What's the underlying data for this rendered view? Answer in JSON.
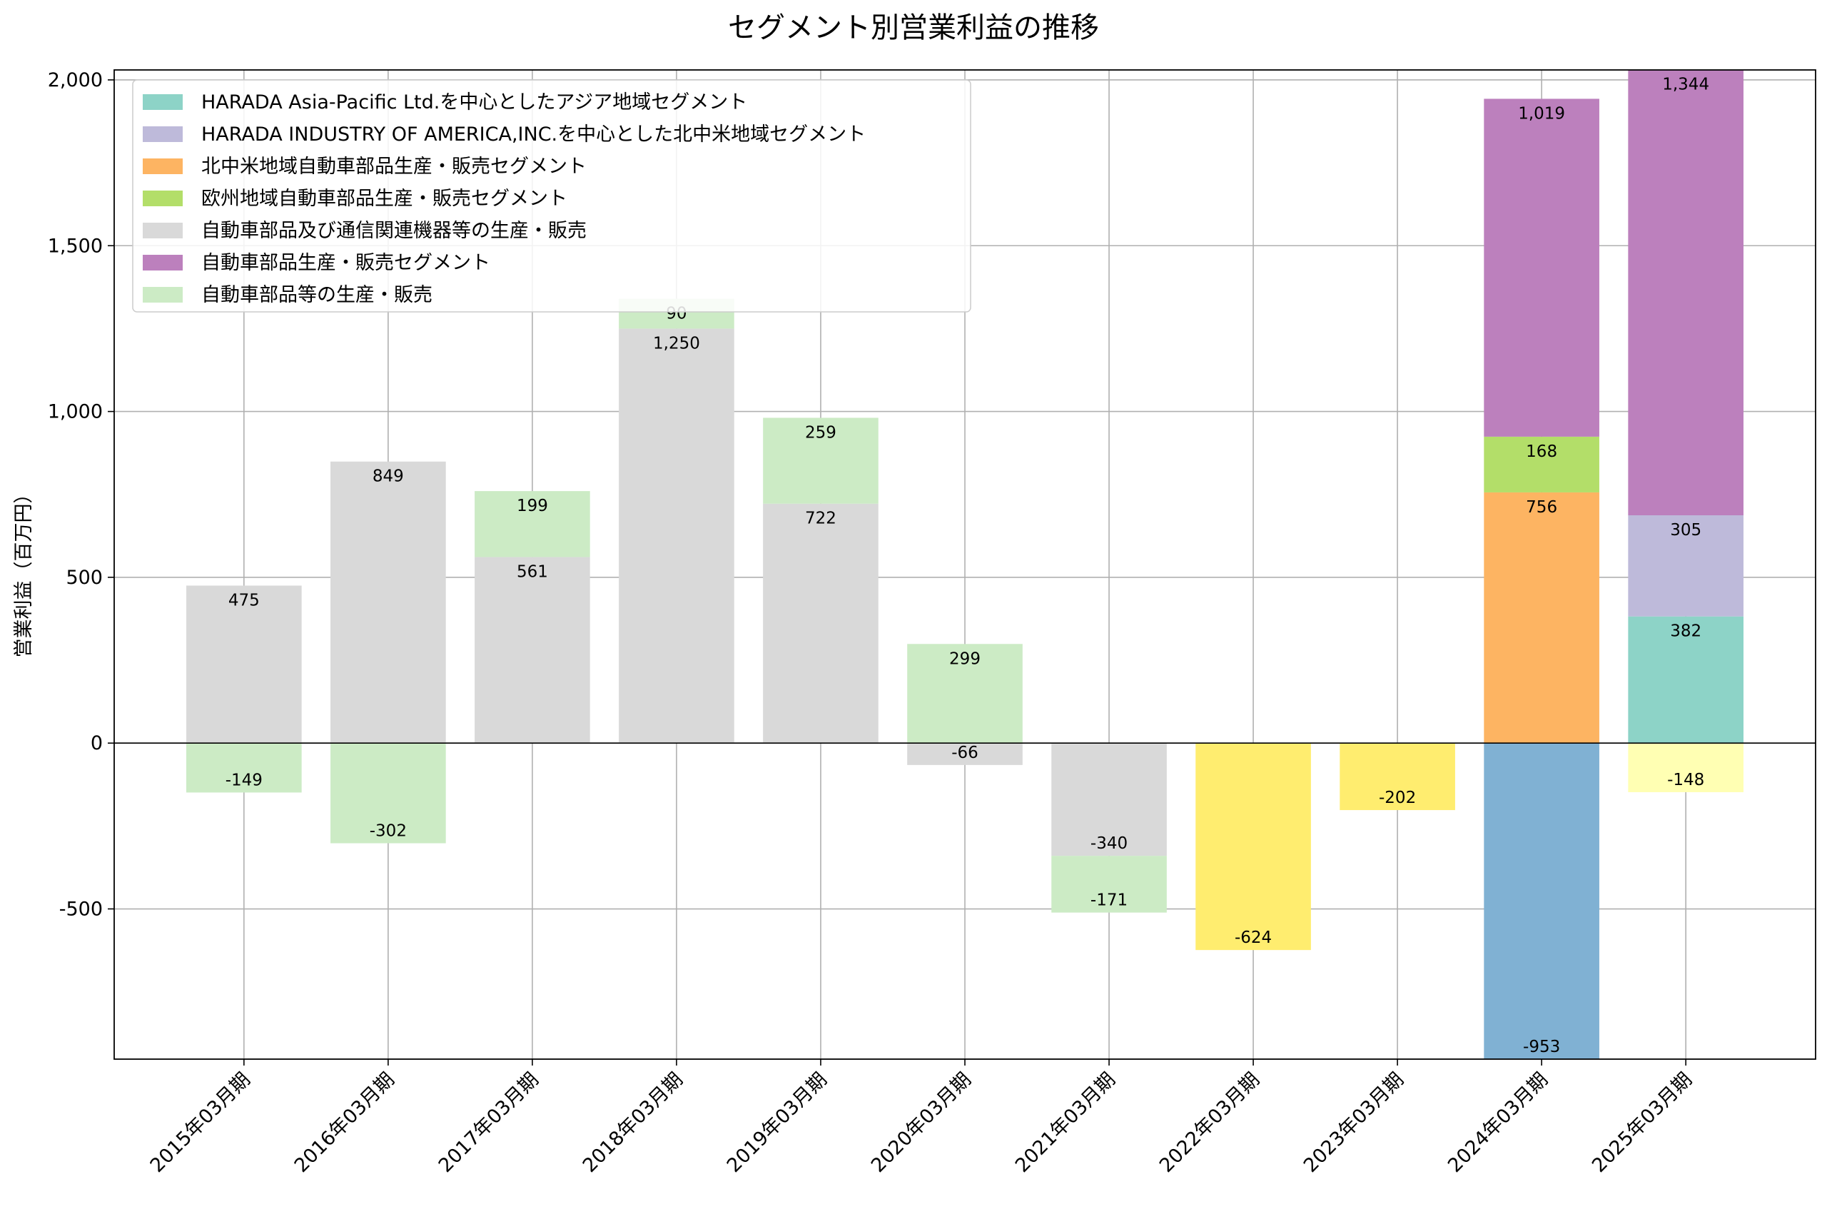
{
  "chart_data": {
    "type": "bar",
    "stacked": true,
    "title": "セグメント別営業利益の推移",
    "xlabel": "",
    "ylabel": "営業利益（百万円）",
    "ylim": [
      -953,
      2030
    ],
    "yticks": [
      -500,
      0,
      500,
      1000,
      1500,
      2000
    ],
    "ytick_labels": [
      "-500",
      "0",
      "500",
      "1,000",
      "1,500",
      "2,000"
    ],
    "grid": true,
    "legend_position": "top-left",
    "categories": [
      "2015年03月期",
      "2016年03月期",
      "2017年03月期",
      "2018年03月期",
      "2019年03月期",
      "2020年03月期",
      "2021年03月期",
      "2022年03月期",
      "2023年03月期",
      "2024年03月期",
      "2025年03月期"
    ],
    "segments": [
      {
        "cat": 0,
        "series": 4,
        "base": 0,
        "value": 475,
        "color": "#d9d9d9",
        "label": "475"
      },
      {
        "cat": 0,
        "series": 6,
        "base": 0,
        "value": -149,
        "color": "#ccebc5",
        "label": "-149"
      },
      {
        "cat": 1,
        "series": 4,
        "base": 0,
        "value": 849,
        "color": "#d9d9d9",
        "label": "849"
      },
      {
        "cat": 1,
        "series": 6,
        "base": 0,
        "value": -302,
        "color": "#ccebc5",
        "label": "-302"
      },
      {
        "cat": 2,
        "series": 4,
        "base": 0,
        "value": 561,
        "color": "#d9d9d9",
        "label": "561"
      },
      {
        "cat": 2,
        "series": 6,
        "base": 561,
        "value": 199,
        "color": "#ccebc5",
        "label": "199"
      },
      {
        "cat": 3,
        "series": 4,
        "base": 0,
        "value": 1250,
        "color": "#d9d9d9",
        "label": "1,250"
      },
      {
        "cat": 3,
        "series": 6,
        "base": 1250,
        "value": 90,
        "color": "#ccebc5",
        "label": "90"
      },
      {
        "cat": 4,
        "series": 4,
        "base": 0,
        "value": 722,
        "color": "#d9d9d9",
        "label": "722"
      },
      {
        "cat": 4,
        "series": 6,
        "base": 722,
        "value": 259,
        "color": "#ccebc5",
        "label": "259"
      },
      {
        "cat": 5,
        "series": 6,
        "base": 0,
        "value": 299,
        "color": "#ccebc5",
        "label": "299"
      },
      {
        "cat": 5,
        "series": 4,
        "base": 0,
        "value": -66,
        "color": "#d9d9d9",
        "label": "-66"
      },
      {
        "cat": 6,
        "series": 4,
        "base": 0,
        "value": -340,
        "color": "#d9d9d9",
        "label": "-340"
      },
      {
        "cat": 6,
        "series": 6,
        "base": -340,
        "value": -171,
        "color": "#ccebc5",
        "label": "-171"
      },
      {
        "cat": 7,
        "series": null,
        "base": 0,
        "value": -624,
        "color": "#ffed6f",
        "label": "-624"
      },
      {
        "cat": 8,
        "series": null,
        "base": 0,
        "value": -202,
        "color": "#ffed6f",
        "label": "-202"
      },
      {
        "cat": 9,
        "series": 2,
        "base": 0,
        "value": 756,
        "color": "#fdb462",
        "label": "756"
      },
      {
        "cat": 9,
        "series": 3,
        "base": 756,
        "value": 168,
        "color": "#b3de69",
        "label": "168"
      },
      {
        "cat": 9,
        "series": 5,
        "base": 924,
        "value": 1019,
        "color": "#bc80bd",
        "label": "1,019"
      },
      {
        "cat": 9,
        "series": null,
        "base": 0,
        "value": -953,
        "color": "#80b1d3",
        "label": "-953"
      },
      {
        "cat": 10,
        "series": 0,
        "base": 0,
        "value": 382,
        "color": "#8dd3c7",
        "label": "382"
      },
      {
        "cat": 10,
        "series": 1,
        "base": 382,
        "value": 305,
        "color": "#bebada",
        "label": "305"
      },
      {
        "cat": 10,
        "series": 5,
        "base": 687,
        "value": 1344,
        "color": "#bc80bd",
        "label": "1,344"
      },
      {
        "cat": 10,
        "series": null,
        "base": 0,
        "value": -148,
        "color": "#ffffb3",
        "label": "-148"
      }
    ],
    "series": [
      {
        "name": "HARADA Asia-Pacific Ltd.を中心としたアジア地域セグメント",
        "color": "#8dd3c7"
      },
      {
        "name": "HARADA INDUSTRY OF AMERICA,INC.を中心とした北中米地域セグメント",
        "color": "#bebada"
      },
      {
        "name": "北中米地域自動車部品生産・販売セグメント",
        "color": "#fdb462"
      },
      {
        "name": "欧州地域自動車部品生産・販売セグメント",
        "color": "#b3de69"
      },
      {
        "name": "自動車部品及び通信関連機器等の生産・販売",
        "color": "#d9d9d9"
      },
      {
        "name": "自動車部品生産・販売セグメント",
        "color": "#bc80bd"
      },
      {
        "name": "自動車部品等の生産・販売",
        "color": "#ccebc5"
      }
    ]
  }
}
